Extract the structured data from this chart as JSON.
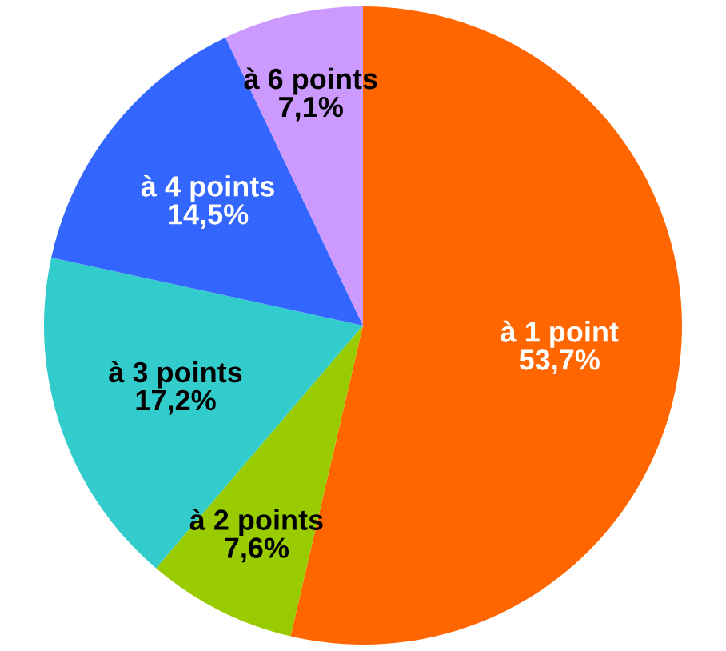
{
  "chart_data": {
    "type": "pie",
    "categories": [
      "à 1 point",
      "à 2 points",
      "à 3 points",
      "à 4 points",
      "à 6 points"
    ],
    "values": [
      53.7,
      7.6,
      17.2,
      14.5,
      7.1
    ],
    "colors": [
      "#ff6600",
      "#99cc00",
      "#33cccc",
      "#3366ff",
      "#cc99ff"
    ],
    "value_labels": [
      "53,7%",
      "7,6%",
      "17,2%",
      "14,5%",
      "7,1%"
    ],
    "legend": false
  }
}
